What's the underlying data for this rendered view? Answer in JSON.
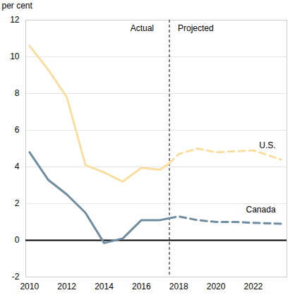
{
  "chart_data": {
    "type": "line",
    "y_label": "per cent",
    "annotations": [
      "Actual",
      "Projected"
    ],
    "projection_start": 2017.5,
    "x": [
      2010,
      2011,
      2012,
      2013,
      2014,
      2015,
      2016,
      2017,
      2017.5,
      2018,
      2019,
      2020,
      2021,
      2022,
      2023.5
    ],
    "series": [
      {
        "name": "U.S.",
        "color": "#f9dea0",
        "values": [
          10.6,
          9.3,
          7.8,
          4.1,
          3.7,
          3.2,
          3.95,
          3.85,
          4.2,
          null,
          null,
          null,
          null,
          null,
          null
        ],
        "projected": [
          null,
          null,
          null,
          null,
          null,
          null,
          null,
          null,
          4.2,
          4.7,
          5.0,
          4.8,
          4.85,
          4.9,
          4.4
        ]
      },
      {
        "name": "Canada",
        "color": "#6f8ca1",
        "values": [
          4.8,
          3.3,
          2.5,
          1.5,
          -0.15,
          0.1,
          1.1,
          1.1,
          1.2,
          null,
          null,
          null,
          null,
          null,
          null
        ],
        "projected": [
          null,
          null,
          null,
          null,
          null,
          null,
          null,
          null,
          1.2,
          1.3,
          1.1,
          1.0,
          1.0,
          0.95,
          0.9
        ]
      }
    ],
    "xlim": [
      2009.8,
      2023.8
    ],
    "xticks": [
      2010,
      2012,
      2014,
      2016,
      2018,
      2020,
      2022
    ],
    "ylim": [
      -2,
      12
    ],
    "yticks": [
      -2,
      0,
      2,
      4,
      6,
      8,
      10,
      12
    ],
    "grid": true,
    "line_style": "solid"
  }
}
